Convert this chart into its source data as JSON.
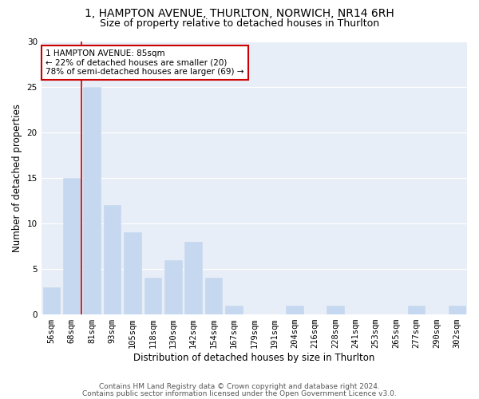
{
  "title": "1, HAMPTON AVENUE, THURLTON, NORWICH, NR14 6RH",
  "subtitle": "Size of property relative to detached houses in Thurlton",
  "xlabel": "Distribution of detached houses by size in Thurlton",
  "ylabel": "Number of detached properties",
  "categories": [
    "56sqm",
    "68sqm",
    "81sqm",
    "93sqm",
    "105sqm",
    "118sqm",
    "130sqm",
    "142sqm",
    "154sqm",
    "167sqm",
    "179sqm",
    "191sqm",
    "204sqm",
    "216sqm",
    "228sqm",
    "241sqm",
    "253sqm",
    "265sqm",
    "277sqm",
    "290sqm",
    "302sqm"
  ],
  "values": [
    3,
    15,
    25,
    12,
    9,
    4,
    6,
    8,
    4,
    1,
    0,
    0,
    1,
    0,
    1,
    0,
    0,
    0,
    1,
    0,
    1
  ],
  "bar_color": "#c5d8ef",
  "bar_edgecolor": "#c5d8ef",
  "vline_color": "#cc0000",
  "vline_x": 1.5,
  "annotation_text": "1 HAMPTON AVENUE: 85sqm\n← 22% of detached houses are smaller (20)\n78% of semi-detached houses are larger (69) →",
  "annotation_box_facecolor": "#ffffff",
  "annotation_box_edgecolor": "#cc0000",
  "ylim": [
    0,
    30
  ],
  "yticks": [
    0,
    5,
    10,
    15,
    20,
    25,
    30
  ],
  "plot_bg_color": "#e8eef7",
  "fig_bg_color": "#ffffff",
  "grid_color": "#ffffff",
  "footer_line1": "Contains HM Land Registry data © Crown copyright and database right 2024.",
  "footer_line2": "Contains public sector information licensed under the Open Government Licence v3.0.",
  "title_fontsize": 10,
  "subtitle_fontsize": 9,
  "xlabel_fontsize": 8.5,
  "ylabel_fontsize": 8.5,
  "tick_fontsize": 7.5,
  "annotation_fontsize": 7.5,
  "footer_fontsize": 6.5
}
